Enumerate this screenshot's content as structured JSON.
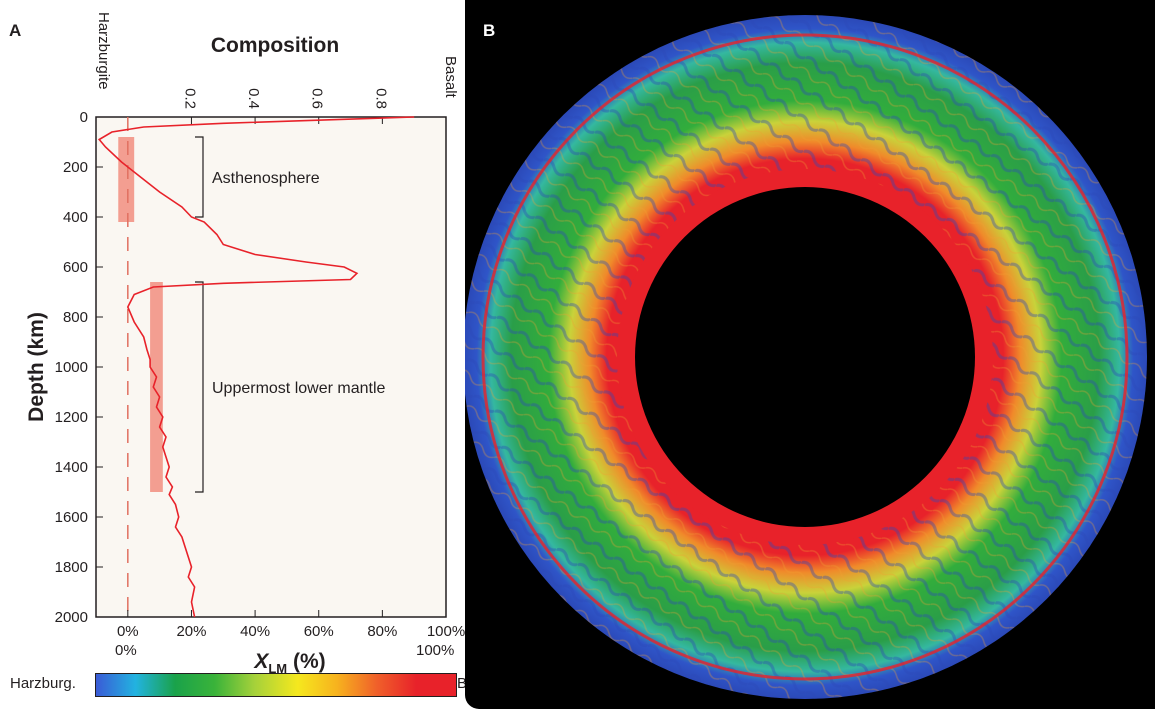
{
  "panel_a": {
    "letter": "A",
    "top_axis_title": "Composition",
    "top_end_left": "Harzburgite",
    "top_end_right": "Basalt",
    "bracket_labels": [
      "Asthenosphere",
      "Uppermost lower mantle"
    ],
    "bottom_axis_label_main": "X",
    "bottom_axis_label_sub": "LM",
    "bottom_axis_label_unit": "(%)",
    "left_axis_label": "Depth (km)"
  },
  "panel_b": {
    "letter": "B"
  },
  "colorbar": {
    "left_label": "Harzburg.",
    "right_label": "Basalt",
    "min_label": "0%",
    "max_label": "100%",
    "stops": [
      "#3a5bd6",
      "#22b3e0",
      "#1aa24a",
      "#3ab33a",
      "#a5d13a",
      "#f5e81e",
      "#f7b21e",
      "#f0602a",
      "#e8222a",
      "#e8222a"
    ]
  },
  "chart_data": {
    "type": "line",
    "title": "Composition",
    "xlabel": "XLM (%)",
    "ylabel": "Depth (km)",
    "x_range": [
      -0.1,
      1.0
    ],
    "y_range": [
      0,
      2000
    ],
    "y_inverted": true,
    "top_ticks": [
      "0.2",
      "0.4",
      "0.6",
      "0.8"
    ],
    "top_tick_values": [
      0.2,
      0.4,
      0.6,
      0.8
    ],
    "bottom_ticks": [
      "0%",
      "20%",
      "40%",
      "60%",
      "80%",
      "100%"
    ],
    "bottom_tick_values": [
      0.0,
      0.2,
      0.4,
      0.6,
      0.8,
      1.0
    ],
    "y_ticks": [
      "0",
      "200",
      "400",
      "600",
      "800",
      "1000",
      "1200",
      "1400",
      "1600",
      "1800",
      "2000"
    ],
    "y_tick_values": [
      0,
      200,
      400,
      600,
      800,
      1000,
      1200,
      1400,
      1600,
      1800,
      2000
    ],
    "profile": {
      "x": [
        0.9,
        0.3,
        0.05,
        -0.05,
        -0.09,
        -0.07,
        -0.02,
        0.04,
        0.1,
        0.17,
        0.2,
        0.24,
        0.28,
        0.3,
        0.4,
        0.56,
        0.68,
        0.72,
        0.7,
        0.3,
        0.08,
        0.02,
        0.0,
        0.02,
        0.05,
        0.06,
        0.07,
        0.07,
        0.09,
        0.08,
        0.1,
        0.09,
        0.11,
        0.1,
        0.12,
        0.11,
        0.12,
        0.13,
        0.12,
        0.14,
        0.13,
        0.15,
        0.16,
        0.15,
        0.17,
        0.18,
        0.19,
        0.2,
        0.19,
        0.21,
        0.2,
        0.21
      ],
      "y": [
        0,
        25,
        40,
        60,
        90,
        120,
        180,
        240,
        300,
        360,
        400,
        420,
        470,
        510,
        550,
        580,
        600,
        625,
        650,
        665,
        680,
        710,
        760,
        820,
        880,
        930,
        970,
        1000,
        1040,
        1080,
        1120,
        1160,
        1200,
        1240,
        1280,
        1320,
        1360,
        1400,
        1440,
        1480,
        1510,
        1550,
        1600,
        1640,
        1680,
        1720,
        1760,
        1800,
        1840,
        1880,
        1940,
        2000
      ]
    },
    "reference_line_x": 0.0,
    "bands": [
      {
        "x_start": -0.03,
        "x_end": 0.02,
        "y_start": 80,
        "y_end": 420
      },
      {
        "x_start": 0.07,
        "x_end": 0.11,
        "y_start": 660,
        "y_end": 1500
      }
    ],
    "brackets": [
      {
        "label": "Asthenosphere",
        "y_start": 80,
        "y_end": 400
      },
      {
        "label": "Uppermost lower mantle",
        "y_start": 660,
        "y_end": 1500
      }
    ]
  }
}
